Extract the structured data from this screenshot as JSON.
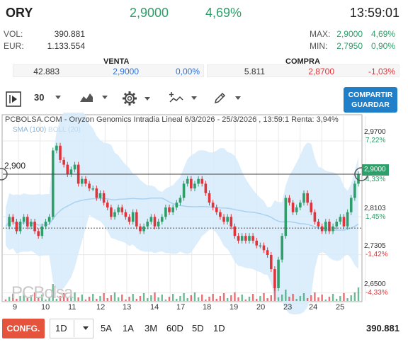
{
  "header": {
    "symbol": "ORY",
    "price": "2,9000",
    "change_pct": "4,69%",
    "time": "13:59:01"
  },
  "stats": {
    "vol_label": "VOL:",
    "vol_value": "390.881",
    "eur_label": "EUR:",
    "eur_value": "1.133.554",
    "max_label": "MAX:",
    "max_value": "2,9000",
    "max_pct": "4,69%",
    "min_label": "MIN:",
    "min_value": "2,7950",
    "min_pct": "0,90%"
  },
  "orderbook": {
    "venta_label": "VENTA",
    "compra_label": "COMPRA",
    "venta_qty": "42.883",
    "venta_price": "2,9000",
    "venta_pct": "0,00%",
    "compra_qty": "5.811",
    "compra_price": "2,8700",
    "compra_pct": "-1,03%"
  },
  "toolbar": {
    "period": "30",
    "share_label_1": "COMPARTIR",
    "share_label_2": "GUARDAR"
  },
  "chart": {
    "title": "PCBOLSA.COM - Oryzon Genomics Intradia Lineal 6/3/2026 - 25/3/2026 , 13:59:1 Renta: 3,94%",
    "legend_sma": "SMA (100)",
    "legend_boll": "BOLL (20)",
    "left_price_tag": "2,900",
    "watermark": "PCBolsa",
    "colors": {
      "up": "#2f9e6a",
      "down": "#e0343a",
      "band": "#d6ebfa",
      "sma": "#a9d1f1"
    }
  },
  "chart_data": {
    "type": "line",
    "x": [
      "9",
      "10",
      "11",
      "12",
      "13",
      "14",
      "15",
      "16",
      "17",
      "18",
      "19",
      "20",
      "21",
      "22",
      "23",
      "24",
      "25"
    ],
    "y_axis": [
      {
        "value": "2,9700",
        "pct": "7,22%"
      },
      {
        "value": "2,9000",
        "pct": "4,33%"
      },
      {
        "value": "2,8103",
        "pct": "1,45%"
      },
      {
        "value": "2,7305",
        "pct": "-1,42%"
      },
      {
        "value": "2,6500",
        "pct": "-4,33%"
      }
    ],
    "ylim": [
      2.645,
      2.985
    ],
    "last_price": "2,9000",
    "price_series": [
      2.79,
      2.81,
      2.8,
      2.78,
      2.8,
      2.81,
      2.79,
      2.8,
      2.78,
      2.77,
      2.79,
      2.8,
      2.81,
      2.95,
      2.96,
      2.93,
      2.92,
      2.9,
      2.91,
      2.92,
      2.88,
      2.89,
      2.88,
      2.87,
      2.87,
      2.85,
      2.86,
      2.84,
      2.83,
      2.81,
      2.82,
      2.83,
      2.82,
      2.81,
      2.8,
      2.82,
      2.79,
      2.78,
      2.79,
      2.8,
      2.81,
      2.79,
      2.8,
      2.81,
      2.83,
      2.82,
      2.83,
      2.84,
      2.85,
      2.88,
      2.89,
      2.87,
      2.88,
      2.89,
      2.88,
      2.86,
      2.84,
      2.83,
      2.82,
      2.81,
      2.8,
      2.81,
      2.79,
      2.77,
      2.76,
      2.77,
      2.76,
      2.77,
      2.76,
      2.75,
      2.75,
      2.74,
      2.73,
      2.7,
      2.66,
      2.72,
      2.77,
      2.85,
      2.84,
      2.82,
      2.83,
      2.84,
      2.86,
      2.84,
      2.82,
      2.8,
      2.79,
      2.78,
      2.8,
      2.78,
      2.79,
      2.8,
      2.81,
      2.79,
      2.82,
      2.85,
      2.88,
      2.9
    ],
    "grid": true
  },
  "volume": "390.881",
  "bottom": {
    "config_label": "CONFG.",
    "interval": "1D",
    "periods": [
      "5A",
      "1A",
      "3M",
      "60D",
      "5D",
      "1D"
    ]
  }
}
